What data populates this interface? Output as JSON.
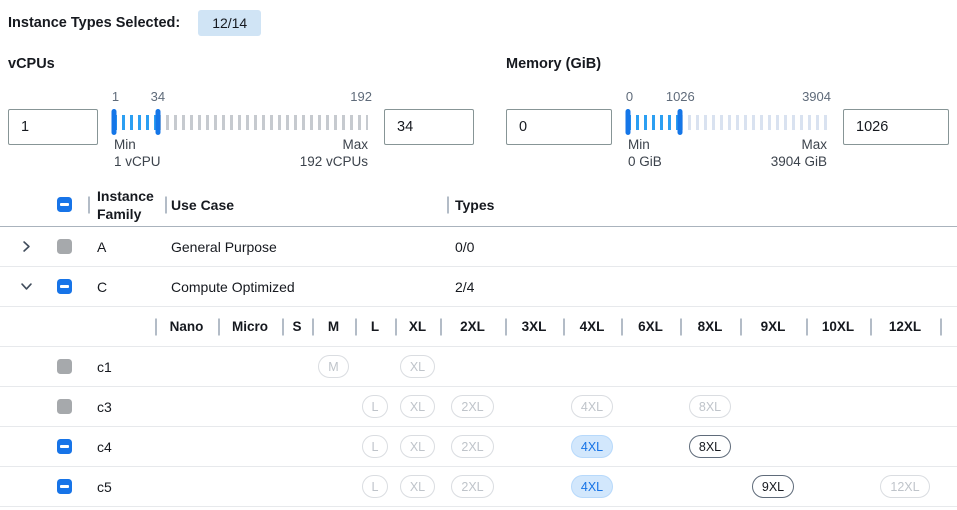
{
  "header": {
    "selected_label": "Instance Types Selected:",
    "selected_count": "12/14"
  },
  "filters": {
    "vcpus": {
      "label": "vCPUs",
      "min_input": "1",
      "max_input": "34",
      "slider": {
        "min": 1,
        "max": 192,
        "handle2": 34,
        "min_label": "1",
        "value_label": "34",
        "max_label": "192",
        "min_title": "Min",
        "min_sub": "1 vCPU",
        "max_title": "Max",
        "max_sub": "192 vCPUs"
      }
    },
    "memory": {
      "label": "Memory (GiB)",
      "min_input": "0",
      "max_input": "1026",
      "slider": {
        "min": 0,
        "max": 3904,
        "handle2": 1026,
        "min_label": "0",
        "value_label": "1026",
        "max_label": "3904",
        "min_title": "Min",
        "min_sub": "0 GiB",
        "max_title": "Max",
        "max_sub": "3904 GiB"
      }
    }
  },
  "table": {
    "columns": {
      "family": "Instance Family",
      "use_case": "Use Case",
      "types": "Types"
    },
    "families": [
      {
        "letter": "A",
        "use_case": "General Purpose",
        "types": "0/0",
        "expanded": false,
        "checkbox": "disabled"
      },
      {
        "letter": "C",
        "use_case": "Compute Optimized",
        "types": "2/4",
        "expanded": true,
        "checkbox": "indeterminate"
      }
    ],
    "size_columns": [
      "Nano",
      "Micro",
      "S",
      "M",
      "L",
      "XL",
      "2XL",
      "3XL",
      "4XL",
      "6XL",
      "8XL",
      "9XL",
      "10XL",
      "12XL"
    ],
    "instance_rows": [
      {
        "name": "c1",
        "checkbox": "disabled",
        "badges": [
          {
            "size": "M",
            "state": "disabled"
          },
          {
            "size": "XL",
            "state": "disabled"
          }
        ]
      },
      {
        "name": "c3",
        "checkbox": "disabled",
        "badges": [
          {
            "size": "L",
            "state": "disabled"
          },
          {
            "size": "XL",
            "state": "disabled"
          },
          {
            "size": "2XL",
            "state": "disabled"
          },
          {
            "size": "4XL",
            "state": "disabled"
          },
          {
            "size": "8XL",
            "state": "disabled"
          }
        ]
      },
      {
        "name": "c4",
        "checkbox": "indeterminate",
        "badges": [
          {
            "size": "L",
            "state": "disabled"
          },
          {
            "size": "XL",
            "state": "disabled"
          },
          {
            "size": "2XL",
            "state": "disabled"
          },
          {
            "size": "4XL",
            "state": "selected"
          },
          {
            "size": "8XL",
            "state": "available"
          }
        ]
      },
      {
        "name": "c5",
        "checkbox": "indeterminate",
        "badges": [
          {
            "size": "L",
            "state": "disabled"
          },
          {
            "size": "XL",
            "state": "disabled"
          },
          {
            "size": "2XL",
            "state": "disabled"
          },
          {
            "size": "4XL",
            "state": "selected"
          },
          {
            "size": "9XL",
            "state": "available"
          },
          {
            "size": "12XL",
            "state": "disabled"
          }
        ]
      }
    ]
  },
  "colors": {
    "accent_blue": "#1774e8",
    "active_tick_blue": "#2b9ff2",
    "selected_badge_bg": "#d2e7fc",
    "selected_badge_text": "#1673e6",
    "count_badge_bg": "#d0e4f5",
    "disabled_grey": "#a6a9ac"
  }
}
